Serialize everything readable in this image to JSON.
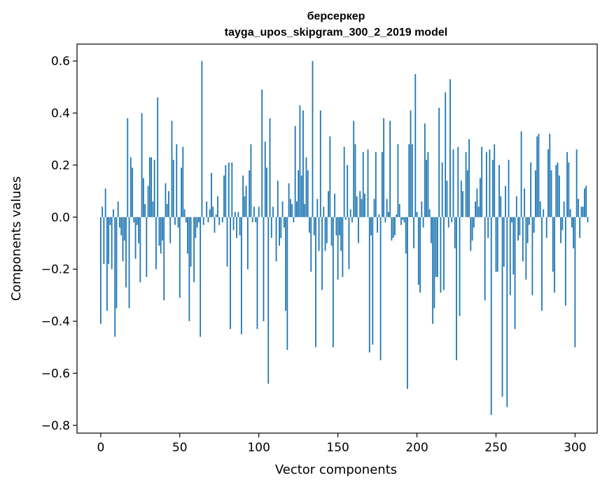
{
  "chart_data": {
    "type": "bar",
    "title": "берсеркер",
    "subtitle": "tayga_upos_skipgram_300_2_2019 model",
    "xlabel": "Vector components",
    "ylabel": "Components values",
    "xlim": [
      -15,
      314
    ],
    "ylim": [
      -0.83,
      0.665
    ],
    "xticks": [
      0,
      50,
      100,
      150,
      200,
      250,
      300
    ],
    "xtick_labels": [
      "0",
      "50",
      "100",
      "150",
      "200",
      "250",
      "300"
    ],
    "yticks": [
      -0.8,
      -0.6,
      -0.4,
      -0.2,
      0.0,
      0.2,
      0.4,
      0.6
    ],
    "ytick_labels": [
      "−0.8",
      "−0.6",
      "−0.4",
      "−0.2",
      "0.0",
      "0.2",
      "0.4",
      "0.6"
    ],
    "grid": false,
    "bar_color": "#1f77b4",
    "x_start": 0,
    "values": [
      -0.41,
      0.04,
      -0.18,
      0.11,
      -0.36,
      -0.18,
      -0.03,
      -0.2,
      0.03,
      -0.46,
      -0.35,
      0.06,
      -0.04,
      -0.07,
      -0.17,
      -0.09,
      -0.27,
      0.38,
      -0.35,
      0.23,
      0.19,
      -0.02,
      -0.16,
      -0.03,
      -0.1,
      -0.25,
      0.4,
      0.15,
      0.05,
      -0.23,
      0.12,
      0.23,
      0.23,
      0.06,
      0.22,
      -0.2,
      0.46,
      -0.11,
      -0.14,
      -0.09,
      -0.32,
      0.13,
      0.05,
      0.1,
      -0.1,
      0.37,
      0.22,
      -0.03,
      0.28,
      -0.04,
      -0.31,
      0.19,
      0.27,
      0.03,
      -0.02,
      -0.14,
      -0.4,
      -0.19,
      0.0,
      -0.25,
      -0.08,
      -0.04,
      -0.02,
      -0.46,
      0.6,
      -0.03,
      0.0,
      0.06,
      -0.02,
      0.03,
      0.17,
      0.04,
      -0.06,
      0.01,
      0.08,
      -0.03,
      0.0,
      -0.02,
      0.16,
      0.2,
      -0.19,
      0.21,
      -0.43,
      0.21,
      -0.05,
      0.02,
      -0.08,
      0.02,
      -0.07,
      -0.45,
      0.16,
      0.08,
      0.12,
      -0.2,
      0.18,
      0.28,
      -0.02,
      0.04,
      -0.02,
      -0.43,
      0.04,
      0.0,
      0.49,
      -0.4,
      0.29,
      0.19,
      -0.64,
      0.38,
      -0.08,
      0.04,
      0.0,
      -0.17,
      0.14,
      -0.11,
      -0.08,
      0.06,
      -0.04,
      -0.36,
      -0.51,
      0.13,
      0.07,
      0.05,
      -0.02,
      0.35,
      0.06,
      0.18,
      0.43,
      0.16,
      0.41,
      0.05,
      0.23,
      0.18,
      -0.06,
      -0.21,
      0.6,
      -0.07,
      -0.5,
      0.07,
      -0.13,
      0.41,
      -0.28,
      0.04,
      -0.13,
      -0.1,
      0.1,
      0.31,
      -0.11,
      -0.5,
      0.09,
      -0.07,
      -0.24,
      -0.07,
      -0.13,
      -0.23,
      0.27,
      -0.01,
      0.2,
      -0.2,
      0.03,
      -0.02,
      0.37,
      0.28,
      0.08,
      -0.1,
      0.1,
      0.07,
      0.25,
      0.09,
      0.0,
      0.26,
      -0.52,
      -0.07,
      -0.49,
      0.07,
      0.25,
      -0.06,
      0.01,
      -0.55,
      0.25,
      0.38,
      -0.02,
      0.07,
      0.02,
      0.37,
      -0.09,
      -0.08,
      -0.07,
      0.01,
      0.28,
      0.05,
      -0.03,
      -0.01,
      -0.02,
      -0.14,
      -0.66,
      0.28,
      0.41,
      0.28,
      -0.12,
      0.55,
      0.02,
      -0.26,
      -0.29,
      0.06,
      -0.04,
      0.36,
      0.22,
      0.25,
      0.03,
      -0.1,
      -0.41,
      -0.35,
      -0.23,
      -0.23,
      0.42,
      -0.29,
      0.21,
      -0.28,
      0.48,
      0.14,
      -0.04,
      0.53,
      -0.02,
      0.26,
      -0.12,
      -0.55,
      0.27,
      -0.38,
      0.14,
      0.1,
      0.0,
      0.25,
      0.18,
      0.3,
      -0.13,
      -0.09,
      -0.04,
      0.06,
      0.11,
      0.04,
      0.15,
      0.27,
      0.0,
      -0.32,
      0.25,
      -0.08,
      0.26,
      -0.76,
      0.22,
      0.28,
      -0.21,
      -0.21,
      0.2,
      0.08,
      -0.69,
      -0.19,
      0.12,
      -0.73,
      0.22,
      -0.3,
      -0.02,
      -0.22,
      -0.43,
      0.08,
      -0.09,
      -0.07,
      0.33,
      -0.17,
      0.11,
      -0.24,
      -0.1,
      -0.03,
      0.21,
      -0.3,
      -0.06,
      0.18,
      0.31,
      0.32,
      0.06,
      -0.36,
      0.03,
      0.0,
      -0.08,
      0.26,
      0.32,
      0.18,
      -0.21,
      -0.29,
      0.2,
      0.21,
      0.16,
      -0.1,
      -0.05,
      0.06,
      -0.34,
      0.25,
      0.21,
      0.03,
      -0.04,
      -0.12,
      -0.5,
      0.26,
      0.07,
      -0.08,
      0.04,
      0.04,
      0.11,
      0.12,
      -0.02
    ]
  }
}
